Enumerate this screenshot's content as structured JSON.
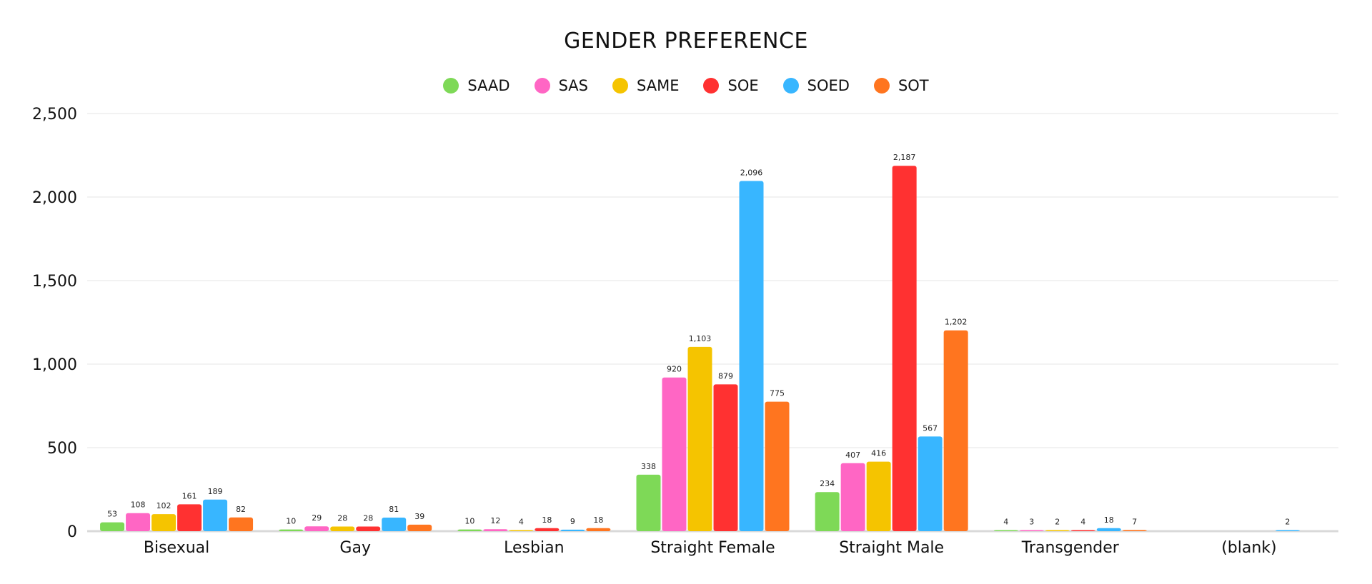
{
  "chart_data": {
    "type": "bar",
    "title": "GENDER PREFERENCE",
    "xlabel": "",
    "ylabel": "",
    "ylim": [
      0,
      2500
    ],
    "yticks": [
      "0",
      "500",
      "1,000",
      "1,500",
      "2,000",
      "2,500"
    ],
    "grid": true,
    "legend_position": "top",
    "categories": [
      "Bisexual",
      "Gay",
      "Lesbian",
      "Straight Female",
      "Straight Male",
      "Transgender",
      "(blank)"
    ],
    "series": [
      {
        "name": "SAAD",
        "color": "#7ED957",
        "values": [
          53,
          10,
          10,
          338,
          234,
          4,
          null
        ]
      },
      {
        "name": "SAS",
        "color": "#FF66C4",
        "values": [
          108,
          29,
          12,
          920,
          407,
          3,
          null
        ]
      },
      {
        "name": "SAME",
        "color": "#F5C400",
        "values": [
          102,
          28,
          4,
          1103,
          416,
          2,
          null
        ]
      },
      {
        "name": "SOE",
        "color": "#FF3131",
        "values": [
          161,
          28,
          18,
          879,
          2187,
          4,
          null
        ]
      },
      {
        "name": "SOED",
        "color": "#38B6FF",
        "values": [
          189,
          81,
          9,
          2096,
          567,
          18,
          2
        ]
      },
      {
        "name": "SOT",
        "color": "#FF751F",
        "values": [
          82,
          39,
          18,
          775,
          1202,
          7,
          null
        ]
      }
    ]
  }
}
